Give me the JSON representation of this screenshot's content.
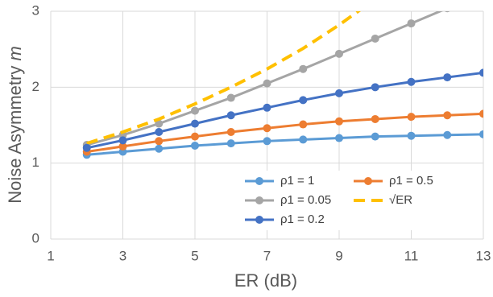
{
  "chart_data": {
    "type": "line",
    "x_label": "ER (dB)",
    "y_label": "Noise Asymmetry",
    "y_label_var": "m",
    "x": [
      2,
      3,
      4,
      5,
      6,
      7,
      8,
      9,
      10,
      11,
      12,
      13
    ],
    "series": [
      {
        "name": "ρ1 = 1",
        "color": "#5b9bd5",
        "markers": true,
        "dashed": false,
        "values": [
          1.11,
          1.15,
          1.19,
          1.23,
          1.26,
          1.29,
          1.31,
          1.33,
          1.35,
          1.36,
          1.37,
          1.38
        ]
      },
      {
        "name": "ρ1 = 0.5",
        "color": "#ed7d31",
        "markers": true,
        "dashed": false,
        "values": [
          1.15,
          1.22,
          1.29,
          1.35,
          1.41,
          1.46,
          1.51,
          1.55,
          1.58,
          1.61,
          1.63,
          1.65
        ]
      },
      {
        "name": "ρ1 = 0.05",
        "color": "#a5a5a5",
        "markers": true,
        "dashed": false,
        "values": [
          1.24,
          1.37,
          1.52,
          1.69,
          1.86,
          2.05,
          2.24,
          2.44,
          2.64,
          2.84,
          3.04,
          null
        ]
      },
      {
        "name": "√ER",
        "color": "#ffc000",
        "markers": false,
        "dashed": true,
        "values": [
          1.26,
          1.41,
          1.58,
          1.78,
          2.0,
          2.24,
          2.51,
          2.82,
          3.16,
          null,
          null,
          null
        ]
      },
      {
        "name": "ρ1 = 0.2",
        "color": "#4472c4",
        "markers": true,
        "dashed": false,
        "values": [
          1.2,
          1.3,
          1.41,
          1.52,
          1.63,
          1.73,
          1.83,
          1.92,
          2.0,
          2.07,
          2.13,
          2.19
        ]
      }
    ],
    "xlim": [
      1,
      13
    ],
    "xticks": [
      1,
      3,
      5,
      7,
      9,
      11,
      13
    ],
    "ylim": [
      0,
      3
    ],
    "yticks": [
      0,
      1,
      2,
      3
    ],
    "grid": true,
    "legend": "lower right"
  }
}
